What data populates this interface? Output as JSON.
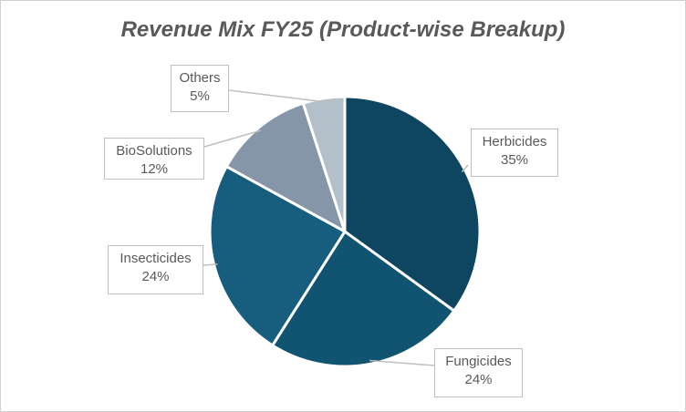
{
  "chart_data": {
    "type": "pie",
    "title": "Revenue Mix FY25 (Product-wise Breakup)",
    "categories": [
      "Herbicides",
      "Fungicides",
      "Insecticides",
      "BioSolutions",
      "Others"
    ],
    "values": [
      35,
      24,
      24,
      12,
      5
    ],
    "labels": [
      "35%",
      "24%",
      "24%",
      "12%",
      "5%"
    ],
    "colors": [
      "#0e4560",
      "#115471",
      "#175d7e",
      "#8496a7",
      "#b3bfc9"
    ],
    "start_angle": "12 o'clock",
    "direction": "clockwise",
    "legend": "none"
  }
}
